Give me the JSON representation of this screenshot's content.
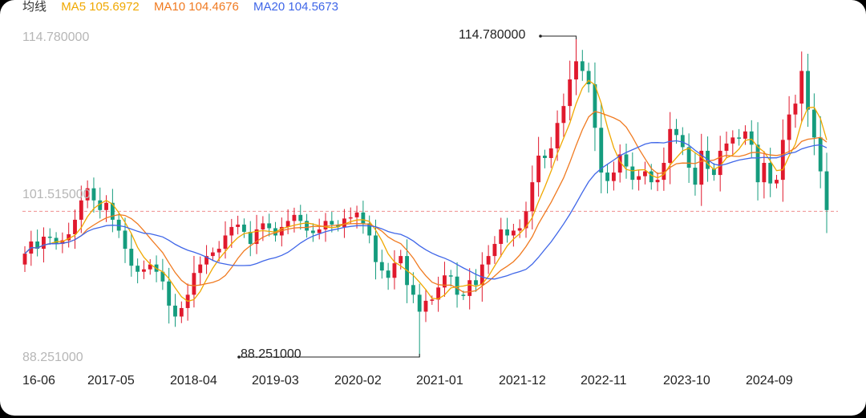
{
  "chart_data": {
    "type": "candlestick",
    "legend": {
      "title": "均线",
      "items": [
        {
          "text": "MA5 105.6972",
          "color": "#f0a800"
        },
        {
          "text": "MA10 104.4676",
          "color": "#f07a20"
        },
        {
          "text": "MA20 104.5673",
          "color": "#3f66e8"
        }
      ]
    },
    "y_tick_labels": [
      "114.780000",
      "101.515000",
      "88.251000"
    ],
    "ylim": [
      88.251,
      114.78
    ],
    "x_tick_labels": [
      "16-06",
      "2017-05",
      "2018-04",
      "2019-03",
      "2020-02",
      "2021-01",
      "2021-12",
      "2022-11",
      "2023-10",
      "2024-09"
    ],
    "annotations": {
      "max": "114.780000",
      "min": "88.251000"
    },
    "reference_line": 100.3,
    "colors": {
      "up": "#e0192d",
      "down": "#159c7e",
      "ma5": "#f0a800",
      "ma10": "#f07a20",
      "ma20": "#3f66e8",
      "ref": "#ef8f8f"
    },
    "close": [
      96.8,
      97.8,
      97.2,
      98.2,
      98.1,
      97.6,
      97.9,
      98.4,
      99.6,
      101.2,
      102.2,
      101.2,
      100.4,
      101.0,
      99.6,
      98.7,
      97.2,
      95.8,
      95.3,
      95.5,
      95.9,
      95.3,
      94.5,
      92.5,
      91.6,
      92.3,
      93.4,
      95.2,
      95.9,
      96.6,
      96.9,
      97.2,
      98.3,
      99.0,
      99.2,
      98.6,
      97.6,
      98.8,
      99.3,
      98.9,
      98.3,
      99.0,
      99.5,
      100.0,
      99.5,
      98.7,
      98.5,
      98.8,
      99.5,
      99.2,
      99.0,
      99.7,
      99.8,
      100.2,
      99.3,
      98.3,
      96.1,
      95.4,
      94.8,
      96.0,
      96.6,
      94.2,
      93.4,
      92.0,
      92.9,
      93.0,
      94.0,
      95.0,
      94.9,
      93.4,
      93.3,
      94.6,
      94.2,
      95.9,
      96.6,
      97.6,
      98.8,
      98.3,
      98.7,
      98.9,
      100.3,
      102.7,
      104.9,
      104.7,
      105.5,
      107.6,
      109.0,
      111.2,
      112.7,
      111.9,
      110.8,
      107.2,
      103.5,
      102.8,
      103.5,
      105.0,
      104.0,
      102.9,
      103.2,
      103.6,
      102.7,
      102.9,
      104.3,
      107.1,
      106.6,
      105.6,
      103.9,
      102.5,
      105.3,
      103.8,
      103.3,
      105.3,
      105.9,
      106.4,
      106.3,
      106.9,
      105.8,
      102.7,
      104.3,
      102.6,
      102.9,
      106.2,
      108.3,
      109.2,
      111.9,
      108.7,
      106.4,
      103.6,
      100.4
    ]
  }
}
